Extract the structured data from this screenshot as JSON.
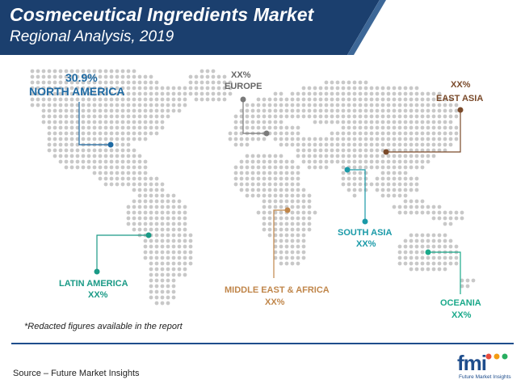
{
  "header": {
    "title": "Cosmeceutical Ingredients Market",
    "subtitle": "Regional Analysis, 2019",
    "bg_color": "#1b3f6e",
    "accent_color": "#3d6797"
  },
  "regions": [
    {
      "id": "north-america",
      "name": "NORTH AMERICA",
      "value": "30.9%",
      "color": "#1e6aa3"
    },
    {
      "id": "europe",
      "name": "EUROPE",
      "value": "XX%",
      "color": "#7a7a7a"
    },
    {
      "id": "east-asia",
      "name": "EAST ASIA",
      "value": "XX%",
      "color": "#7a4a2a"
    },
    {
      "id": "latin-america",
      "name": "LATIN AMERICA",
      "value": "XX%",
      "color": "#1a9a86"
    },
    {
      "id": "middle-east-africa",
      "name": "MIDDLE EAST & AFRICA",
      "value": "XX%",
      "color": "#c0864a"
    },
    {
      "id": "south-asia",
      "name": "SOUTH ASIA",
      "value": "XX%",
      "color": "#1a9aa8"
    },
    {
      "id": "oceania",
      "name": "OCEANIA",
      "value": "XX%",
      "color": "#1aa98a"
    }
  ],
  "note": "*Redacted figures available in the report",
  "source": "Source – Future Market Insights",
  "logo": {
    "text": "fmi",
    "subtext": "Future Market Insights",
    "dot_colors": [
      "#e84b3c",
      "#f39c12",
      "#27ae60"
    ]
  },
  "map_dot_color": "#c8c8c8"
}
